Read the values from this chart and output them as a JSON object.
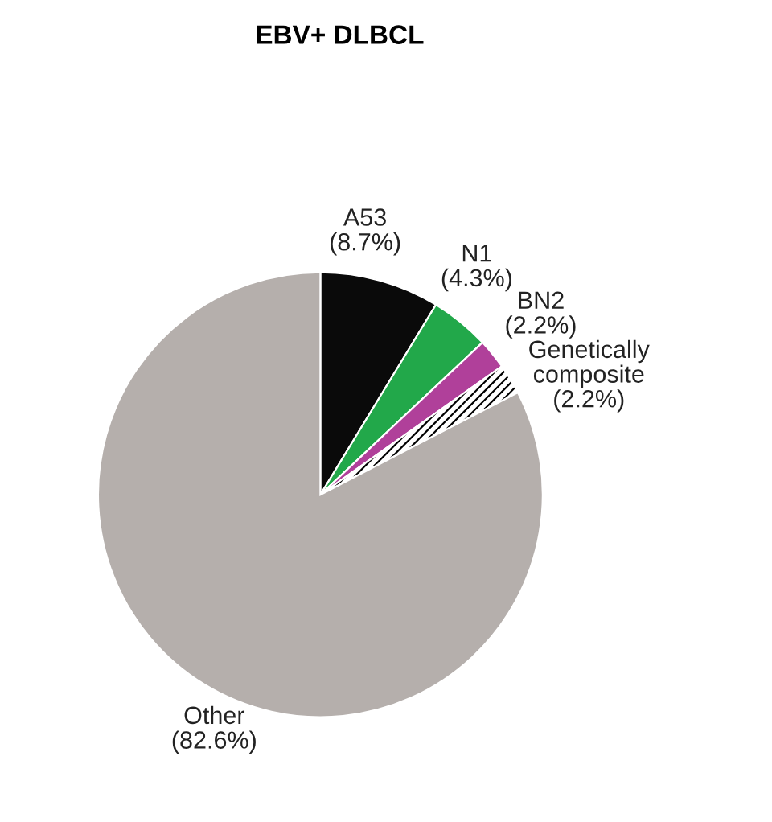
{
  "chart_data": {
    "type": "pie",
    "title": "EBV+ DLBCL",
    "categories": [
      "A53",
      "N1",
      "BN2",
      "Genetically\ncomposite",
      "Other"
    ],
    "values": [
      8.7,
      4.3,
      2.2,
      2.2,
      82.6
    ],
    "value_labels": [
      "(8.7%)",
      "(4.3%)",
      "(2.2%)",
      "(2.2%)",
      "(82.6%)"
    ],
    "colors": [
      "#0a0a0a",
      "#22a84a",
      "#b0409a",
      "#ffffff",
      "#b5afac"
    ]
  }
}
